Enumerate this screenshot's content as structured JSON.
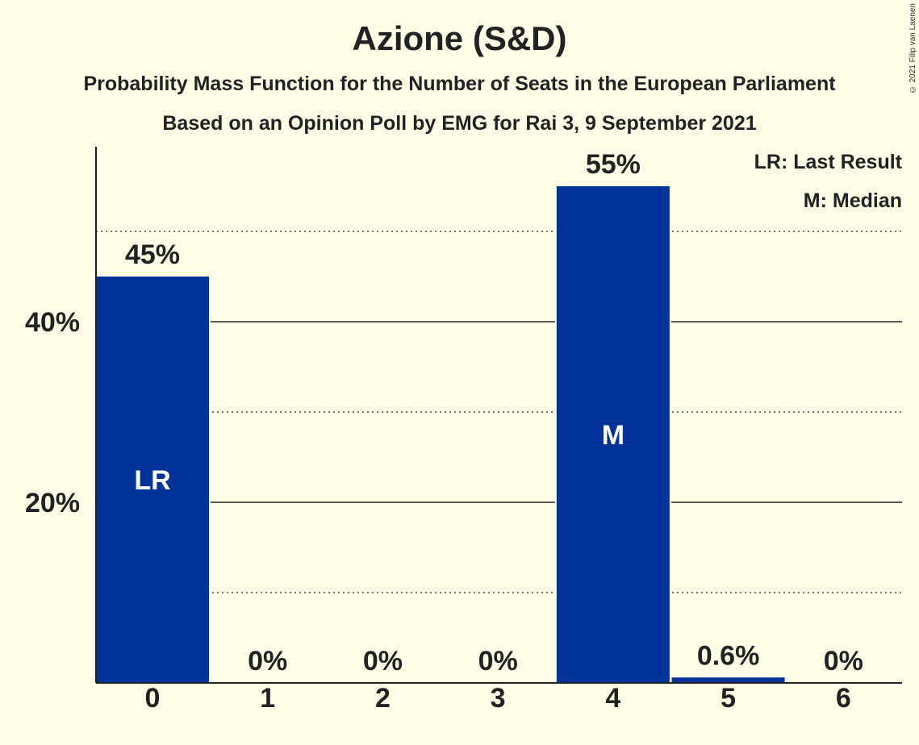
{
  "chart_data": {
    "type": "bar",
    "title": "Azione (S&D)",
    "subtitle_1": "Probability Mass Function for the Number of Seats in the European Parliament",
    "subtitle_2": "Based on an Opinion Poll by EMG for Rai 3, 9 September 2021",
    "categories": [
      "0",
      "1",
      "2",
      "3",
      "4",
      "5",
      "6"
    ],
    "values": [
      45,
      0,
      0,
      0,
      55,
      0.6,
      0
    ],
    "value_labels": [
      "45%",
      "0%",
      "0%",
      "0%",
      "55%",
      "0.6%",
      "0%"
    ],
    "bar_markers": [
      "LR",
      "",
      "",
      "",
      "M",
      "",
      ""
    ],
    "ylim": [
      0,
      60
    ],
    "y_ticks": [
      {
        "value": 20,
        "label": "20%"
      },
      {
        "value": 40,
        "label": "40%"
      }
    ],
    "major_grid": [
      20,
      40
    ],
    "minor_grid": [
      10,
      30,
      50
    ],
    "legend": [
      "LR: Last Result",
      "M: Median"
    ],
    "legend_position": "top-right",
    "bar_color": "#003399",
    "copyright": "© 2021 Filip van Laenen"
  }
}
